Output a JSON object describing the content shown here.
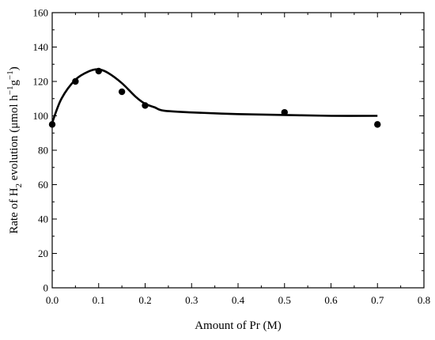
{
  "chart_data": {
    "type": "scatter",
    "xlabel": "Amount of Pr (M)",
    "ylabel": {
      "parts": [
        "Rate of H",
        "2",
        " evolution (μmol h",
        "−1",
        "g",
        "−1",
        ")"
      ]
    },
    "xlim": [
      0.0,
      0.8
    ],
    "ylim": [
      0,
      160
    ],
    "x_ticks": [
      0.0,
      0.1,
      0.2,
      0.3,
      0.4,
      0.5,
      0.6,
      0.7,
      0.8
    ],
    "y_ticks": [
      0,
      20,
      40,
      60,
      80,
      100,
      120,
      140,
      160
    ],
    "x_tick_labels": [
      "0.0",
      "0.1",
      "0.2",
      "0.3",
      "0.4",
      "0.5",
      "0.6",
      "0.7",
      "0.8"
    ],
    "y_tick_labels": [
      "0",
      "20",
      "40",
      "60",
      "80",
      "100",
      "120",
      "140",
      "160"
    ],
    "grid": false,
    "series": [
      {
        "kind": "points",
        "x": [
          0.0,
          0.05,
          0.1,
          0.15,
          0.2,
          0.5,
          0.7
        ],
        "y": [
          95,
          120,
          126,
          114,
          106,
          102,
          95
        ]
      },
      {
        "kind": "line",
        "x": [
          0.0,
          0.02,
          0.05,
          0.08,
          0.1,
          0.12,
          0.15,
          0.18,
          0.2,
          0.22,
          0.24,
          0.3,
          0.4,
          0.5,
          0.6,
          0.7
        ],
        "y": [
          96,
          110,
          121,
          126,
          127,
          125,
          119,
          111,
          107,
          105,
          103,
          102,
          101,
          100.5,
          100,
          100
        ]
      }
    ],
    "colors": {
      "marks": "#000000",
      "axes": "#000000"
    }
  }
}
